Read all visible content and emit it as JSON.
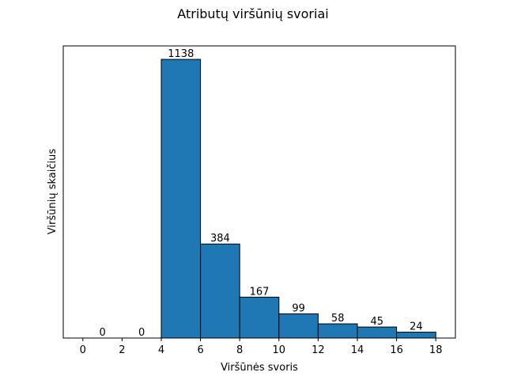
{
  "chart_data": {
    "type": "bar",
    "title": "Atributų viršūnių svoriai",
    "xlabel": "Viršūnės svoris",
    "ylabel": "Viršūnių skaičius",
    "bins": [
      [
        0,
        2
      ],
      [
        2,
        4
      ],
      [
        4,
        6
      ],
      [
        6,
        8
      ],
      [
        8,
        10
      ],
      [
        10,
        12
      ],
      [
        12,
        14
      ],
      [
        14,
        16
      ],
      [
        16,
        18
      ]
    ],
    "values": [
      0,
      0,
      1138,
      384,
      167,
      99,
      58,
      45,
      24
    ],
    "data_labels": [
      "0",
      "0",
      "1138",
      "384",
      "167",
      "99",
      "58",
      "45",
      "24"
    ],
    "xticks": [
      "0",
      "2",
      "4",
      "6",
      "8",
      "10",
      "12",
      "14",
      "16",
      "18"
    ],
    "xlim": [
      -1,
      19
    ],
    "ylim": [
      0,
      1138
    ],
    "yticks_shown": false,
    "grid": false,
    "bar_color": "#1f77b4",
    "edge_color": "#000000"
  }
}
